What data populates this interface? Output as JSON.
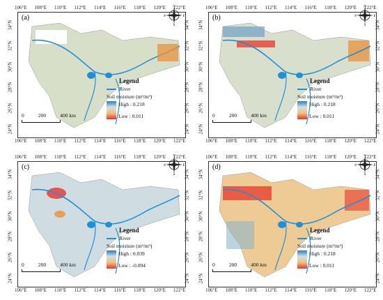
{
  "x_ticks": [
    "106°E",
    "108°E",
    "110°E",
    "112°E",
    "114°E",
    "116°E",
    "118°E",
    "120°E",
    "122°E"
  ],
  "y_ticks": [
    "34°N",
    "32°N",
    "30°N",
    "28°N",
    "26°N",
    "24°N"
  ],
  "legend_title": "Legend",
  "river_label": "River",
  "soil_label": "Soil moisture (m³/m³)",
  "scale_numbers": [
    "0",
    "200",
    "400 km"
  ],
  "compass": {
    "n": "N",
    "s": "S",
    "e": "E",
    "w": "W"
  },
  "panels": [
    {
      "id": "a",
      "label": "(a)",
      "high": "High : 0.218",
      "low": "Low : 0.011"
    },
    {
      "id": "b",
      "label": "(b)",
      "high": "High : 0.218",
      "low": "Low : 0.011"
    },
    {
      "id": "c",
      "label": "(c)",
      "high": "High : 0.039",
      "low": "Low : -0.094"
    },
    {
      "id": "d",
      "label": "(d)",
      "high": "High : 0.218",
      "low": "Low : 0.011"
    }
  ],
  "colors": {
    "river": "#1e90d8",
    "high": "#2e7fbf",
    "mid": "#d6e3e6",
    "low": "#e8352a"
  }
}
